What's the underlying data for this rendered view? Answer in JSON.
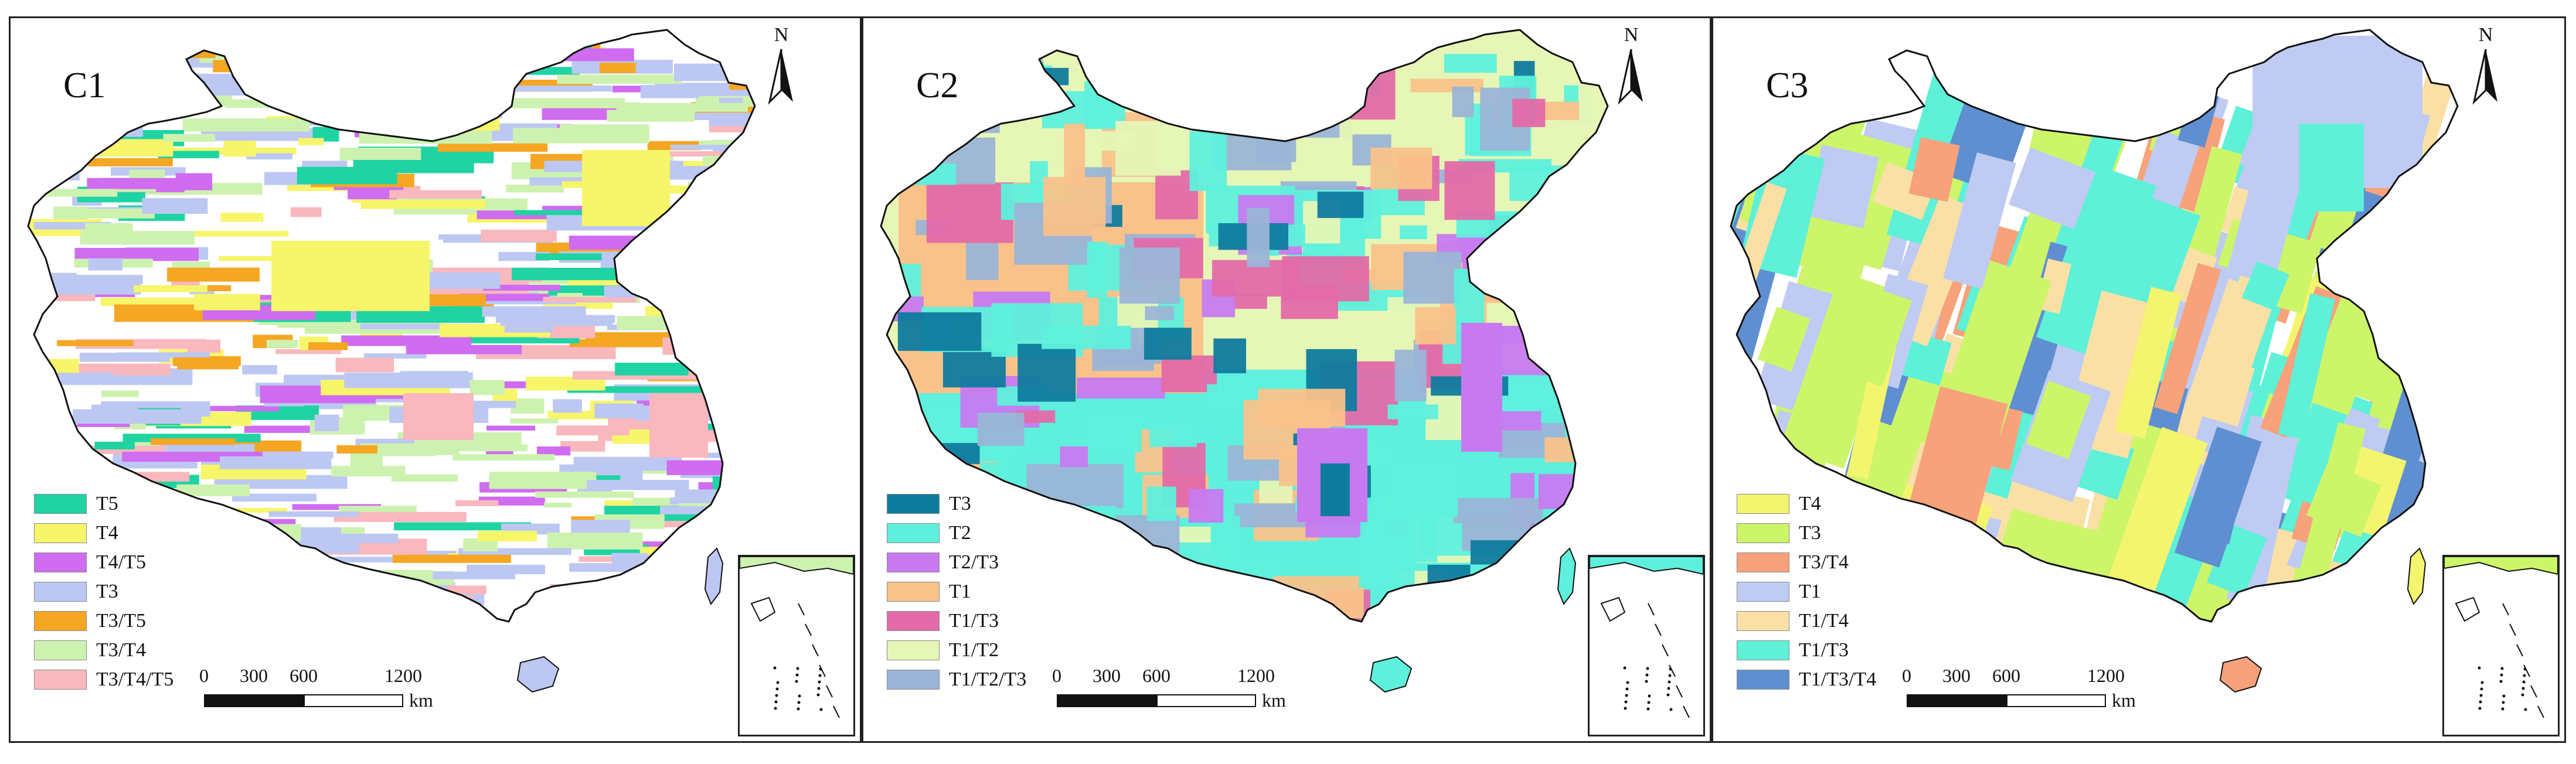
{
  "panels": [
    {
      "id": "C1",
      "title": "C1",
      "legend": [
        {
          "label": "T5",
          "color": "#1fd3a3"
        },
        {
          "label": "T4",
          "color": "#f7f56a"
        },
        {
          "label": "T4/T5",
          "color": "#cf6cf0"
        },
        {
          "label": "T3",
          "color": "#bcc8f2"
        },
        {
          "label": "T3/T5",
          "color": "#f5a623"
        },
        {
          "label": "T3/T4",
          "color": "#cdf2b0"
        },
        {
          "label": "T3/T4/T5",
          "color": "#f8b8bd"
        }
      ]
    },
    {
      "id": "C2",
      "title": "C2",
      "legend": [
        {
          "label": "T3",
          "color": "#0f7b9e"
        },
        {
          "label": "T2",
          "color": "#5ef0dc"
        },
        {
          "label": "T2/T3",
          "color": "#c77af0"
        },
        {
          "label": "T1",
          "color": "#f9c28a"
        },
        {
          "label": "T1/T3",
          "color": "#e36aa8"
        },
        {
          "label": "T1/T2",
          "color": "#e6f6b6"
        },
        {
          "label": "T1/T2/T3",
          "color": "#9bb4d6"
        }
      ]
    },
    {
      "id": "C3",
      "title": "C3",
      "legend": [
        {
          "label": "T4",
          "color": "#f4f56e"
        },
        {
          "label": "T3",
          "color": "#cdf56a"
        },
        {
          "label": "T3/T4",
          "color": "#f7a27a"
        },
        {
          "label": "T1",
          "color": "#bfcbf3"
        },
        {
          "label": "T1/T4",
          "color": "#fbe0a6"
        },
        {
          "label": "T1/T3",
          "color": "#5ff0d8"
        },
        {
          "label": "T1/T3/T4",
          "color": "#5f8fd0"
        }
      ]
    }
  ],
  "north_label": "N",
  "scale": {
    "ticks": [
      "0",
      "300",
      "600",
      "1200"
    ],
    "unit": "km"
  }
}
